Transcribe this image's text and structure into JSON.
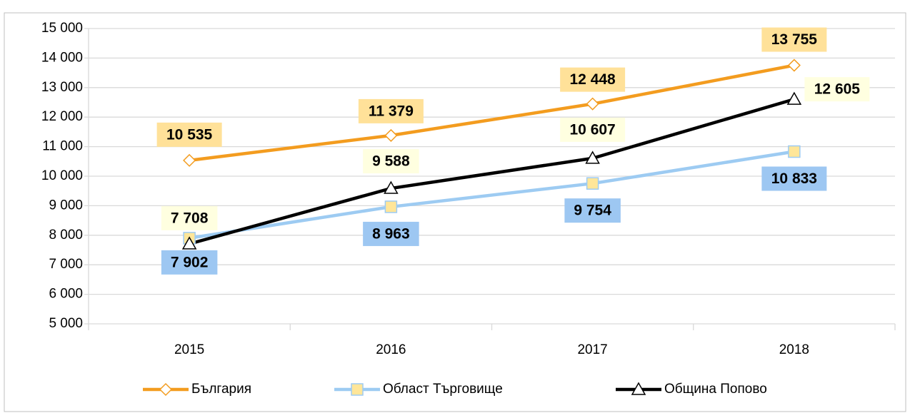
{
  "chart_data": {
    "type": "line",
    "categories": [
      "2015",
      "2016",
      "2017",
      "2018"
    ],
    "series": [
      {
        "name": "България",
        "color": "#f39c1f",
        "marker": "diamond",
        "label_bg": "#ffe199",
        "values": [
          10535,
          11379,
          12448,
          13755
        ],
        "value_labels": [
          "10 535",
          "11 379",
          "12 448",
          "13 755"
        ]
      },
      {
        "name": "Област Търговище",
        "color": "#9dcbf2",
        "marker": "square",
        "label_bg": "#9dc7f2",
        "values": [
          7902,
          8963,
          9754,
          10833
        ],
        "value_labels": [
          "7 902",
          "8 963",
          "9 754",
          "10 833"
        ]
      },
      {
        "name": "Община Попово",
        "color": "#000000",
        "marker": "triangle",
        "label_bg": "#ffffe0",
        "values": [
          7708,
          9588,
          10607,
          12605
        ],
        "value_labels": [
          "7 708",
          "9 588",
          "10 607",
          "12 605"
        ]
      }
    ],
    "ylim": [
      5000,
      15000
    ],
    "yticks": [
      {
        "value": 5000,
        "label": "5 000"
      },
      {
        "value": 6000,
        "label": "6 000"
      },
      {
        "value": 7000,
        "label": "7 000"
      },
      {
        "value": 8000,
        "label": "8 000"
      },
      {
        "value": 9000,
        "label": "9 000"
      },
      {
        "value": 10000,
        "label": "10 000"
      },
      {
        "value": 11000,
        "label": "11 000"
      },
      {
        "value": 12000,
        "label": "12 000"
      },
      {
        "value": 13000,
        "label": "13 000"
      },
      {
        "value": 14000,
        "label": "14 000"
      },
      {
        "value": 15000,
        "label": "15 000"
      }
    ],
    "grid": true,
    "legend": "bottom"
  }
}
